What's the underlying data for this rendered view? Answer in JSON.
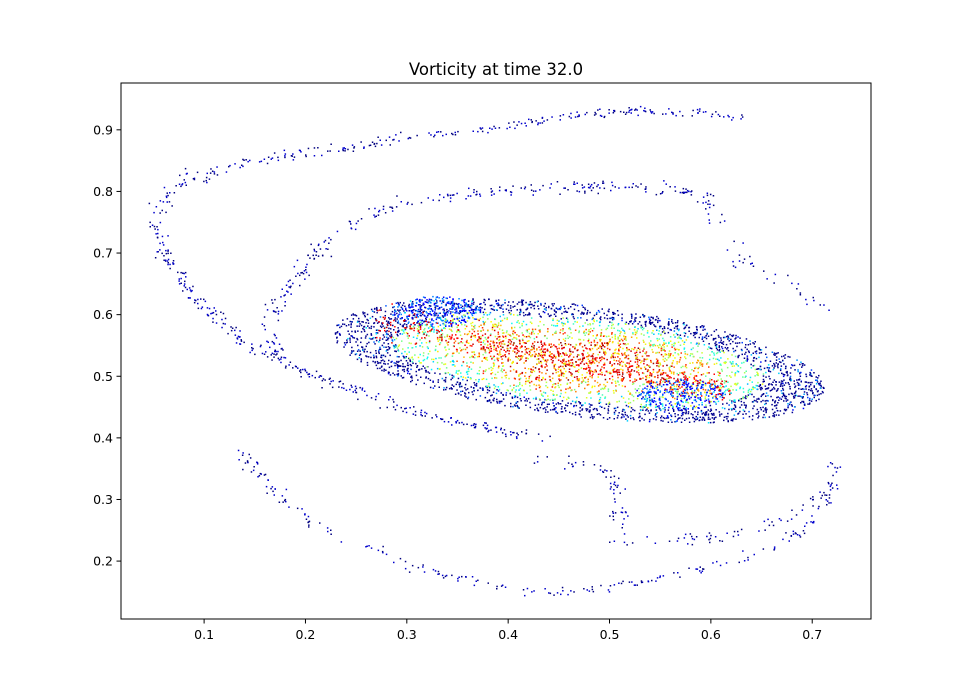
{
  "chart_data": {
    "type": "scatter",
    "title": "Vorticity at time 32.0",
    "xlabel": "",
    "ylabel": "",
    "xlim": [
      0.018,
      0.758
    ],
    "ylim": [
      0.106,
      0.976
    ],
    "x_ticks": [
      0.1,
      0.2,
      0.3,
      0.4,
      0.5,
      0.6,
      0.7
    ],
    "y_ticks": [
      0.2,
      0.3,
      0.4,
      0.5,
      0.6,
      0.7,
      0.8,
      0.9
    ],
    "x_tick_labels": [
      "0.1",
      "0.2",
      "0.3",
      "0.4",
      "0.5",
      "0.6",
      "0.7"
    ],
    "y_tick_labels": [
      "0.2",
      "0.3",
      "0.4",
      "0.5",
      "0.6",
      "0.7",
      "0.8",
      "0.9"
    ],
    "grid": false,
    "colormap": "jet",
    "colormap_stops": [
      "#00007f",
      "#0000ff",
      "#007fff",
      "#00ffff",
      "#7fff7f",
      "#ffff00",
      "#ff7f00",
      "#ff0000",
      "#7f0000"
    ],
    "vortex_core": {
      "center": [
        0.47,
        0.525
      ],
      "semi_major": 0.235,
      "semi_minor": 0.085,
      "tilt_deg": -12
    },
    "filaments": [
      {
        "name": "outer-upper-arm",
        "points": [
          [
            0.63,
            0.918
          ],
          [
            0.58,
            0.93
          ],
          [
            0.52,
            0.93
          ],
          [
            0.45,
            0.92
          ],
          [
            0.4,
            0.905
          ],
          [
            0.35,
            0.893
          ],
          [
            0.3,
            0.89
          ],
          [
            0.25,
            0.872
          ],
          [
            0.2,
            0.862
          ],
          [
            0.15,
            0.85
          ],
          [
            0.12,
            0.84
          ],
          [
            0.1,
            0.82
          ],
          [
            0.085,
            0.826
          ],
          [
            0.07,
            0.8
          ],
          [
            0.055,
            0.77
          ],
          [
            0.05,
            0.76
          ],
          [
            0.055,
            0.74
          ],
          [
            0.06,
            0.7
          ],
          [
            0.075,
            0.66
          ],
          [
            0.09,
            0.63
          ],
          [
            0.11,
            0.6
          ],
          [
            0.13,
            0.57
          ],
          [
            0.15,
            0.545
          ],
          [
            0.18,
            0.52
          ],
          [
            0.22,
            0.495
          ],
          [
            0.26,
            0.47
          ],
          [
            0.3,
            0.445
          ],
          [
            0.35,
            0.425
          ],
          [
            0.4,
            0.41
          ],
          [
            0.44,
            0.4
          ]
        ],
        "density": 150,
        "jitter": 0.004
      },
      {
        "name": "inner-upper-arm",
        "points": [
          [
            0.6,
            0.775
          ],
          [
            0.59,
            0.795
          ],
          [
            0.54,
            0.808
          ],
          [
            0.48,
            0.808
          ],
          [
            0.42,
            0.807
          ],
          [
            0.36,
            0.795
          ],
          [
            0.3,
            0.782
          ],
          [
            0.26,
            0.76
          ],
          [
            0.23,
            0.73
          ],
          [
            0.21,
            0.7
          ],
          [
            0.19,
            0.66
          ],
          [
            0.175,
            0.62
          ],
          [
            0.165,
            0.58
          ],
          [
            0.168,
            0.55
          ],
          [
            0.18,
            0.52
          ]
        ],
        "density": 140,
        "jitter": 0.005
      },
      {
        "name": "lower-arm",
        "points": [
          [
            0.135,
            0.38
          ],
          [
            0.15,
            0.35
          ],
          [
            0.17,
            0.31
          ],
          [
            0.19,
            0.285
          ],
          [
            0.21,
            0.26
          ],
          [
            0.24,
            0.235
          ],
          [
            0.27,
            0.215
          ],
          [
            0.3,
            0.19
          ],
          [
            0.35,
            0.175
          ],
          [
            0.4,
            0.158
          ],
          [
            0.44,
            0.15
          ],
          [
            0.48,
            0.152
          ],
          [
            0.52,
            0.165
          ],
          [
            0.57,
            0.18
          ],
          [
            0.62,
            0.2
          ],
          [
            0.66,
            0.225
          ],
          [
            0.69,
            0.25
          ],
          [
            0.71,
            0.29
          ],
          [
            0.72,
            0.33
          ],
          [
            0.72,
            0.37
          ]
        ],
        "density": 95,
        "jitter": 0.004
      },
      {
        "name": "descending-tail",
        "points": [
          [
            0.43,
            0.37
          ],
          [
            0.47,
            0.36
          ],
          [
            0.5,
            0.35
          ],
          [
            0.505,
            0.32
          ],
          [
            0.51,
            0.29
          ],
          [
            0.512,
            0.255
          ],
          [
            0.51,
            0.235
          ],
          [
            0.53,
            0.23
          ],
          [
            0.58,
            0.235
          ],
          [
            0.63,
            0.245
          ],
          [
            0.68,
            0.27
          ],
          [
            0.7,
            0.3
          ]
        ],
        "density": 90,
        "jitter": 0.005
      },
      {
        "name": "upper-right-spur",
        "points": [
          [
            0.6,
            0.775
          ],
          [
            0.61,
            0.74
          ],
          [
            0.62,
            0.71
          ],
          [
            0.64,
            0.675
          ],
          [
            0.68,
            0.645
          ],
          [
            0.72,
            0.6
          ]
        ],
        "density": 60,
        "jitter": 0.006
      }
    ]
  }
}
